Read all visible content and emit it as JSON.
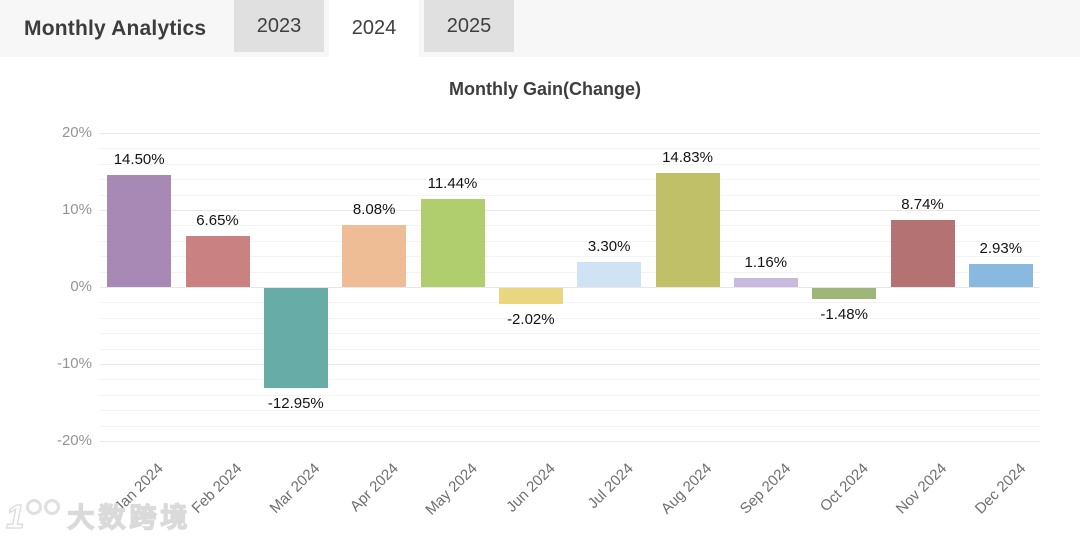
{
  "header": {
    "title": "Monthly Analytics",
    "tabs": [
      {
        "label": "2023",
        "active": false
      },
      {
        "label": "2024",
        "active": true
      },
      {
        "label": "2025",
        "active": false
      }
    ]
  },
  "chart_data": {
    "type": "bar",
    "title": "Monthly Gain(Change)",
    "categories": [
      "Jan 2024",
      "Feb 2024",
      "Mar 2024",
      "Apr 2024",
      "May 2024",
      "Jun 2024",
      "Jul 2024",
      "Aug 2024",
      "Sep 2024",
      "Oct 2024",
      "Nov 2024",
      "Dec 2024"
    ],
    "values": [
      14.5,
      6.65,
      -12.95,
      8.08,
      11.44,
      -2.02,
      3.3,
      14.83,
      1.16,
      -1.48,
      8.74,
      2.93
    ],
    "value_labels": [
      "14.50%",
      "6.65%",
      "-12.95%",
      "8.08%",
      "11.44%",
      "-2.02%",
      "3.30%",
      "14.83%",
      "1.16%",
      "-1.48%",
      "8.74%",
      "2.93%"
    ],
    "bar_colors": [
      "#a888b5",
      "#c98181",
      "#68aca8",
      "#eebd95",
      "#b1ce6e",
      "#e9d67f",
      "#d0e3f4",
      "#bfc067",
      "#c8b9dd",
      "#9eb778",
      "#b47272",
      "#89b9df"
    ],
    "xlabel": "",
    "ylabel": "",
    "ylim": [
      -20,
      20
    ],
    "yticks": [
      {
        "value": 20,
        "label": "20%"
      },
      {
        "value": 10,
        "label": "10%"
      },
      {
        "value": 0,
        "label": "0%"
      },
      {
        "value": -10,
        "label": "-10%"
      },
      {
        "value": -20,
        "label": "-20%"
      }
    ],
    "grid": true,
    "legend_position": "none"
  },
  "watermark": {
    "logo": "1",
    "text": "大数跨境"
  },
  "colors": {
    "header_bg": "#f7f7f7",
    "tab_inactive_bg": "#e0e0e0",
    "tab_active_bg": "#ffffff",
    "grid_major": "#e7e7e7",
    "grid_minor": "#f3f3f3",
    "axis_label": "#949494",
    "value_label": "#141414"
  }
}
